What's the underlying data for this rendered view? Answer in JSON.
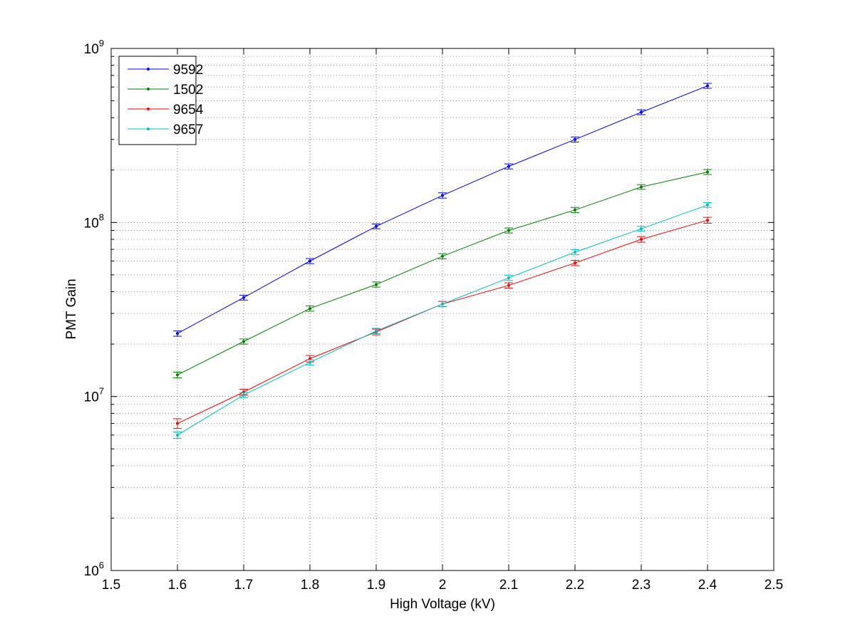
{
  "chart_data": {
    "type": "line",
    "title": "",
    "xlabel": "High Voltage (kV)",
    "ylabel": "PMT Gain",
    "xlim": [
      1.5,
      2.5
    ],
    "ylim": [
      1000000,
      1000000000
    ],
    "yscale": "log",
    "grid": true,
    "legend_position": "top-left",
    "x_ticks": [
      "1.5",
      "1.6",
      "1.7",
      "1.8",
      "1.9",
      "2",
      "2.1",
      "2.2",
      "2.3",
      "2.4",
      "2.5"
    ],
    "y_ticks": [
      {
        "base": "10",
        "exp": "6"
      },
      {
        "base": "10",
        "exp": "7"
      },
      {
        "base": "10",
        "exp": "8"
      },
      {
        "base": "10",
        "exp": "9"
      }
    ],
    "x": [
      1.6,
      1.7,
      1.8,
      1.9,
      2.0,
      2.1,
      2.2,
      2.3,
      2.4
    ],
    "series": [
      {
        "name": "9592",
        "color": "#0000ff",
        "values": [
          23000000,
          37000000,
          60000000,
          95000000,
          143000000,
          210000000,
          300000000,
          430000000,
          610000000
        ],
        "errors": [
          800000,
          1200000,
          2000000,
          3000000,
          5000000,
          7000000,
          10000000,
          14000000,
          20000000
        ]
      },
      {
        "name": "1502",
        "color": "#008000",
        "values": [
          13300000,
          20700000,
          32000000,
          44000000,
          64000000,
          90000000,
          118000000,
          160000000,
          195000000
        ],
        "errors": [
          500000,
          700000,
          1100000,
          1500000,
          2200000,
          3000000,
          4000000,
          5000000,
          6500000
        ]
      },
      {
        "name": "9654",
        "color": "#ff0000",
        "values": [
          7000000,
          10600000,
          16500000,
          23500000,
          34000000,
          43500000,
          58500000,
          80000000,
          103000000
        ],
        "errors": [
          450000,
          400000,
          700000,
          900000,
          1200000,
          1500000,
          2000000,
          3000000,
          4000000
        ]
      },
      {
        "name": "9657",
        "color": "#00bfbf",
        "values": [
          6000000,
          10200000,
          15700000,
          23800000,
          34000000,
          48000000,
          67500000,
          92000000,
          126000000
        ],
        "errors": [
          250000,
          350000,
          550000,
          800000,
          1100000,
          1600000,
          2300000,
          3000000,
          4000000
        ]
      }
    ]
  }
}
